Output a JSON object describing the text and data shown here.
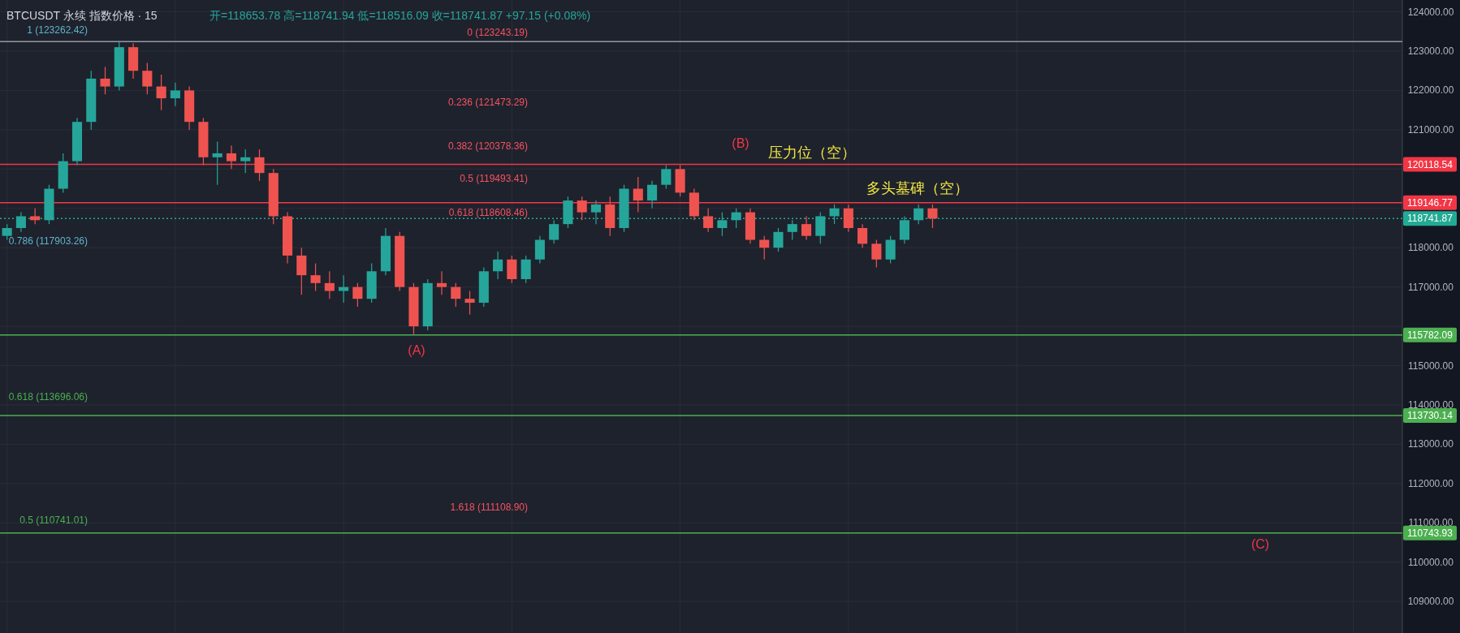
{
  "chart_data": {
    "type": "candlestick",
    "title": "BTCUSDT 永续 指数价格 · 15",
    "subtitle": "开=118653.78 高=118741.94 低=118516.09 收=118741.87 +97.15 (+0.08%)",
    "categories": [
      null,
      null,
      null,
      null,
      null,
      null,
      null,
      null,
      null,
      null,
      null,
      null,
      null,
      null,
      null,
      null,
      null,
      null,
      null,
      null,
      null,
      null,
      null,
      null,
      null,
      null,
      null,
      null,
      null,
      null,
      null,
      null,
      null,
      null,
      null,
      null,
      null,
      null,
      null,
      null,
      null,
      null,
      null,
      null,
      null,
      null,
      null,
      null,
      null,
      null,
      null,
      null,
      null,
      null,
      null,
      null,
      null,
      null,
      null,
      null,
      null,
      null,
      null,
      null,
      null,
      null,
      null,
      null,
      null,
      null,
      null,
      null,
      null,
      null,
      null,
      null,
      null,
      null,
      null,
      null,
      null,
      null,
      null,
      null,
      null,
      null,
      null,
      null,
      null,
      null,
      null,
      null,
      null,
      null,
      null,
      null,
      null,
      null,
      null,
      null
    ],
    "ohlc": [
      [
        118300,
        118600,
        118200,
        118500
      ],
      [
        118500,
        118900,
        118400,
        118800
      ],
      [
        118800,
        119000,
        118600,
        118700
      ],
      [
        118700,
        119600,
        118600,
        119500
      ],
      [
        119500,
        120400,
        119400,
        120200
      ],
      [
        120200,
        121300,
        120100,
        121200
      ],
      [
        121200,
        122500,
        121000,
        122300
      ],
      [
        122300,
        122600,
        121900,
        122100
      ],
      [
        122100,
        123262,
        122000,
        123100
      ],
      [
        123100,
        123200,
        122300,
        122500
      ],
      [
        122500,
        122700,
        121900,
        122100
      ],
      [
        122100,
        122400,
        121500,
        121800
      ],
      [
        121800,
        122200,
        121600,
        122000
      ],
      [
        122000,
        122100,
        121000,
        121200
      ],
      [
        121200,
        121300,
        120100,
        120300
      ],
      [
        120300,
        120700,
        119600,
        120400
      ],
      [
        120400,
        120600,
        120000,
        120200
      ],
      [
        120200,
        120500,
        119900,
        120300
      ],
      [
        120300,
        120500,
        119700,
        119900
      ],
      [
        119900,
        120000,
        118600,
        118800
      ],
      [
        118800,
        118900,
        117600,
        117800
      ],
      [
        117800,
        118000,
        116800,
        117300
      ],
      [
        117300,
        117600,
        116900,
        117100
      ],
      [
        117100,
        117400,
        116700,
        116900
      ],
      [
        116900,
        117300,
        116600,
        117000
      ],
      [
        117000,
        117100,
        116500,
        116700
      ],
      [
        116700,
        117600,
        116600,
        117400
      ],
      [
        117400,
        118500,
        117300,
        118300
      ],
      [
        118300,
        118400,
        116900,
        117000
      ],
      [
        117000,
        117100,
        115800,
        116000
      ],
      [
        116000,
        117200,
        115900,
        117100
      ],
      [
        117100,
        117400,
        116800,
        117000
      ],
      [
        117000,
        117100,
        116500,
        116700
      ],
      [
        116700,
        116900,
        116300,
        116600
      ],
      [
        116600,
        117500,
        116500,
        117400
      ],
      [
        117400,
        117900,
        117200,
        117700
      ],
      [
        117700,
        117800,
        117100,
        117200
      ],
      [
        117200,
        117800,
        117100,
        117700
      ],
      [
        117700,
        118300,
        117600,
        118200
      ],
      [
        118200,
        118700,
        118100,
        118600
      ],
      [
        118600,
        119300,
        118500,
        119200
      ],
      [
        119200,
        119300,
        118700,
        118900
      ],
      [
        118900,
        119200,
        118600,
        119100
      ],
      [
        119100,
        119300,
        118300,
        118500
      ],
      [
        118500,
        119600,
        118400,
        119500
      ],
      [
        119500,
        119800,
        118900,
        119200
      ],
      [
        119200,
        119700,
        119000,
        119600
      ],
      [
        119600,
        120100,
        119500,
        120000
      ],
      [
        120000,
        120100,
        119300,
        119400
      ],
      [
        119400,
        119500,
        118700,
        118800
      ],
      [
        118800,
        119000,
        118400,
        118500
      ],
      [
        118500,
        118900,
        118300,
        118700
      ],
      [
        118700,
        119000,
        118500,
        118900
      ],
      [
        118900,
        119000,
        118100,
        118200
      ],
      [
        118200,
        118300,
        117700,
        118000
      ],
      [
        118000,
        118500,
        117900,
        118400
      ],
      [
        118400,
        118700,
        118200,
        118600
      ],
      [
        118600,
        118800,
        118200,
        118300
      ],
      [
        118300,
        118900,
        118100,
        118800
      ],
      [
        118800,
        119100,
        118600,
        119000
      ],
      [
        119000,
        119100,
        118400,
        118500
      ],
      [
        118500,
        118600,
        118000,
        118100
      ],
      [
        118100,
        118200,
        117500,
        117700
      ],
      [
        117700,
        118300,
        117600,
        118200
      ],
      [
        118200,
        118800,
        118100,
        118700
      ],
      [
        118700,
        119100,
        118600,
        119000
      ],
      [
        119000,
        119100,
        118500,
        118742
      ],
      null,
      null,
      null,
      null,
      null,
      null,
      null,
      null,
      null,
      null,
      null,
      null,
      null,
      null,
      null,
      null,
      null,
      null,
      null,
      null,
      null,
      null,
      null,
      null,
      null,
      null,
      null,
      null,
      null,
      null,
      null,
      null,
      null
    ],
    "ylim": [
      108200,
      124300
    ],
    "yticks": [
      {
        "value": 109000,
        "label": "109000.00"
      },
      {
        "value": 110000,
        "label": "110000.00"
      },
      {
        "value": 111000,
        "label": "111000.00"
      },
      {
        "value": 112000,
        "label": "112000.00"
      },
      {
        "value": 113000,
        "label": "113000.00"
      },
      {
        "value": 114000,
        "label": "114000.00"
      },
      {
        "value": 115000,
        "label": "115000.00"
      },
      {
        "value": 116000,
        "label": null
      },
      {
        "value": 117000,
        "label": "117000.00"
      },
      {
        "value": 118000,
        "label": "118000.00"
      },
      {
        "value": 119000,
        "label": null
      },
      {
        "value": 120000,
        "label": null
      },
      {
        "value": 121000,
        "label": "121000.00"
      },
      {
        "value": 122000,
        "label": "122000.00"
      },
      {
        "value": 123000,
        "label": "123000.00"
      },
      {
        "value": 124000,
        "label": "124000.00"
      }
    ],
    "tick_labels": "y",
    "grid": true,
    "ref_lines": [
      {
        "axis": "y",
        "value": 123243.19,
        "color": "#9598a1",
        "line_style": "solid"
      },
      {
        "axis": "y",
        "value": 120118.54,
        "label": "120118.54",
        "color": "#f23645",
        "line_style": "solid"
      },
      {
        "axis": "y",
        "value": 119146.77,
        "label": "119146.77",
        "color": "#f23645",
        "line_style": "solid"
      },
      {
        "axis": "y",
        "value": 118741.87,
        "label": "118741.87",
        "color": "#22ab94",
        "line_style": "dotted"
      },
      {
        "axis": "y",
        "value": 115782.09,
        "label": "115782.09",
        "color": "#4caf50",
        "line_style": "solid"
      },
      {
        "axis": "y",
        "value": 113730.14,
        "label": "113730.14",
        "color": "#4caf50",
        "line_style": "solid"
      },
      {
        "axis": "y",
        "value": 110743.93,
        "label": "110743.93",
        "color": "#4caf50",
        "line_style": "solid"
      }
    ],
    "annotations": [
      "(B)",
      "压力位（空）",
      "多头墓碑（空）",
      "(A)",
      "(C)",
      "1 (123262.42)",
      "0.786 (117903.26)",
      "0.618 (113696.06)",
      "0.5 (110741.01)",
      "0 (123243.19)",
      "0.236 (121473.29)",
      "0.382 (120378.36)",
      "0.5 (119493.41)",
      "0.618 (118608.46)",
      "1.618 (111108.90)"
    ]
  }
}
